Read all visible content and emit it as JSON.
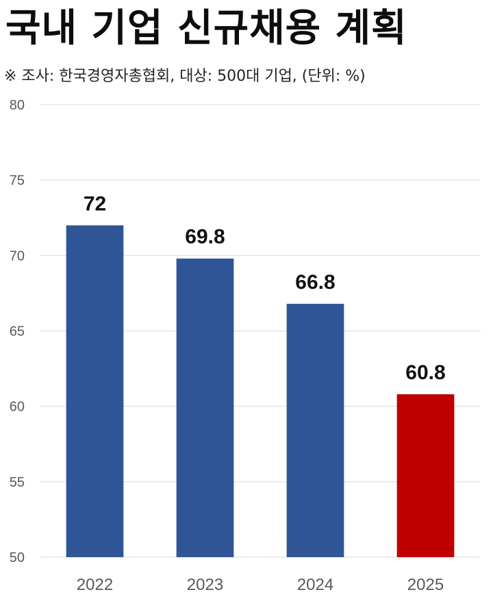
{
  "title": "국내 기업 신규채용 계획",
  "subtitle": "※ 조사: 한국경영자총협회, 대상: 500대 기업, (단위: %)",
  "colors": {
    "default_bar": "#2F5597",
    "highlight_bar": "#C00000",
    "grid": "#D9D9D9"
  },
  "chart_data": {
    "type": "bar",
    "categories": [
      "2022",
      "2023",
      "2024",
      "2025"
    ],
    "values": [
      72,
      69.8,
      66.8,
      60.8
    ],
    "data_labels": [
      "72",
      "69.8",
      "66.8",
      "60.8"
    ],
    "highlight": [
      "2025"
    ],
    "ylim": [
      50,
      80
    ],
    "yticks": [
      50,
      55,
      60,
      65,
      70,
      75,
      80
    ],
    "grid": true,
    "xlabel": "",
    "ylabel": ""
  }
}
